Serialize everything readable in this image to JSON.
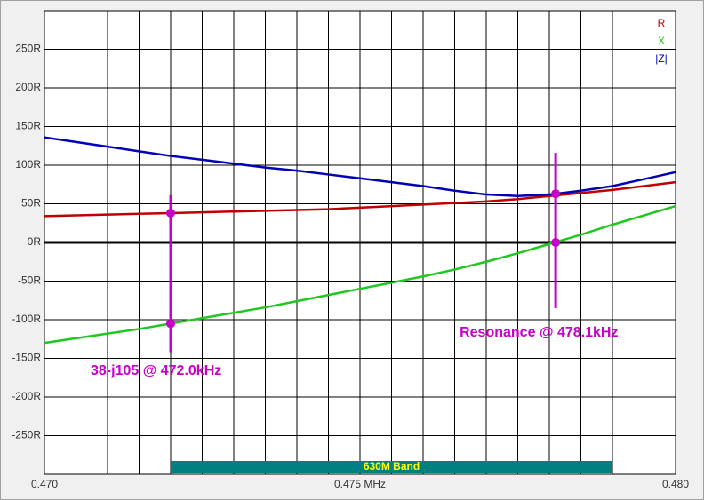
{
  "chart_data": {
    "type": "line",
    "x": [
      0.47,
      0.4705,
      0.471,
      0.4715,
      0.472,
      0.4725,
      0.473,
      0.4735,
      0.474,
      0.4745,
      0.475,
      0.4755,
      0.476,
      0.4765,
      0.477,
      0.4775,
      0.478,
      0.4785,
      0.479,
      0.4795,
      0.48
    ],
    "series": [
      {
        "name": "R",
        "color": "#c00000",
        "values": [
          34,
          35,
          36,
          37,
          38,
          39,
          40,
          41,
          42,
          43,
          45,
          47,
          49,
          51,
          53,
          56,
          60,
          64,
          68,
          73,
          78
        ]
      },
      {
        "name": "X",
        "color": "#1ec81e",
        "values": [
          -130,
          -124,
          -118,
          -112,
          -105,
          -98,
          -91,
          -84,
          -76,
          -68,
          -60,
          -52,
          -44,
          -35,
          -25,
          -14,
          -2,
          10,
          23,
          35,
          47
        ]
      },
      {
        "name": "|Z|",
        "color": "#0000b4",
        "values": [
          136,
          130,
          124,
          118,
          112,
          107,
          102,
          97,
          93,
          88,
          83,
          78,
          73,
          67,
          62,
          60,
          62,
          67,
          73,
          82,
          91
        ]
      }
    ],
    "xlim": [
      0.47,
      0.48
    ],
    "xticks": [
      {
        "value": 0.47,
        "label": "0.470"
      },
      {
        "value": 0.475,
        "label": "0.475 MHz"
      },
      {
        "value": 0.48,
        "label": "0.480"
      }
    ],
    "xgrid": [
      0.4705,
      0.471,
      0.4715,
      0.472,
      0.4725,
      0.473,
      0.4735,
      0.474,
      0.4745,
      0.4755,
      0.476,
      0.4765,
      0.477,
      0.4775,
      0.478,
      0.4785,
      0.479,
      0.4795
    ],
    "ylim": [
      -300,
      300
    ],
    "yticks": [
      {
        "value": 250,
        "label": "250R"
      },
      {
        "value": 200,
        "label": "200R"
      },
      {
        "value": 150,
        "label": "150R"
      },
      {
        "value": 100,
        "label": "100R"
      },
      {
        "value": 50,
        "label": "50R"
      },
      {
        "value": 0,
        "label": "0R"
      },
      {
        "value": -50,
        "label": "-50R"
      },
      {
        "value": -100,
        "label": "-100R"
      },
      {
        "value": -150,
        "label": "-150R"
      },
      {
        "value": -200,
        "label": "-200R"
      },
      {
        "value": -250,
        "label": "-250R"
      }
    ],
    "grid": true,
    "legend": "top-right",
    "markers": [
      {
        "x": 0.472,
        "values": [
          38,
          -105
        ],
        "range": [
          -142,
          61
        ],
        "label": "38-j105 @ 472.0kHz",
        "color": "#c800c8"
      },
      {
        "x": 0.4781,
        "values": [
          63,
          0
        ],
        "range": [
          -85,
          116
        ],
        "label": "Resonance @ 478.1kHz",
        "color": "#c800c8"
      }
    ],
    "band": {
      "label": "630M Band",
      "start": 0.472,
      "end": 0.479,
      "color": "#008080"
    }
  }
}
